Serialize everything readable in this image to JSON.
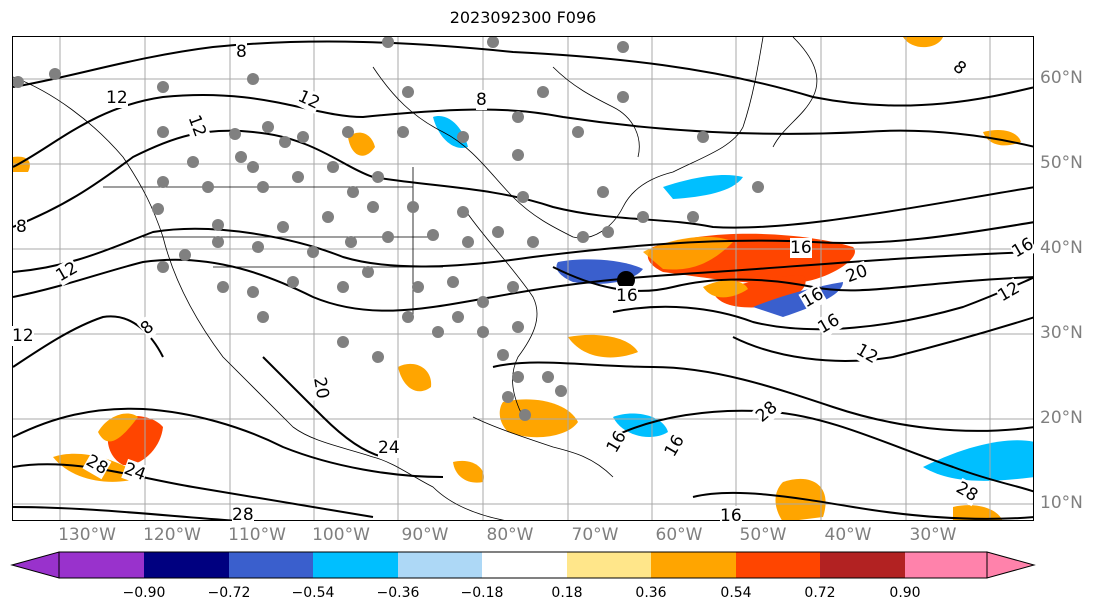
{
  "title": "2023092300 F096",
  "map": {
    "longitude_labels": [
      "130°W",
      "120°W",
      "110°W",
      "100°W",
      "90°W",
      "80°W",
      "70°W",
      "60°W",
      "50°W",
      "40°W",
      "30°W"
    ],
    "latitude_labels": [
      "60°N",
      "50°N",
      "40°N",
      "30°N",
      "20°N",
      "10°N"
    ],
    "grid": true,
    "point_marker_color": "#808080",
    "highlight_marker_color": "#000000",
    "contour_color": "#000000",
    "contour_labels": [
      "8",
      "12",
      "12",
      "12",
      "8",
      "8",
      "12",
      "16",
      "16",
      "16",
      "20",
      "16",
      "16",
      "12",
      "12",
      "12",
      "8",
      "8",
      "20",
      "24",
      "28",
      "28",
      "28",
      "28",
      "24",
      "16",
      "16",
      "16"
    ]
  },
  "colorbar": {
    "ticks": [
      "−0.90",
      "−0.72",
      "−0.54",
      "−0.36",
      "−0.18",
      "0.18",
      "0.36",
      "0.54",
      "0.72",
      "0.90"
    ],
    "colors": [
      "#9932cc",
      "#000080",
      "#3a5fcd",
      "#00bfff",
      "#add8f6",
      "#ffffff",
      "#ffe68a",
      "#ffa500",
      "#ff4500",
      "#b22222",
      "#ff82ab"
    ],
    "extend": "both"
  }
}
